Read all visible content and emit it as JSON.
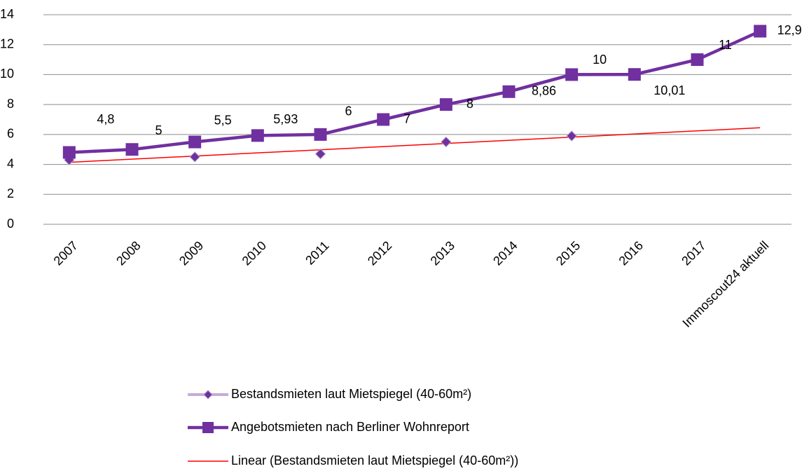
{
  "chart_data": {
    "type": "line",
    "categories": [
      "2007",
      "2008",
      "2009",
      "2010",
      "2011",
      "2012",
      "2013",
      "2014",
      "2015",
      "2016",
      "2017",
      "Immoscout24 aktuell"
    ],
    "series": [
      {
        "name": "Bestandsmieten laut Mietspiegel (40-60m²)",
        "color": "#7030a0",
        "marker": "diamond",
        "values": [
          4.3,
          null,
          4.5,
          null,
          4.7,
          null,
          5.5,
          null,
          5.9,
          null,
          null,
          null
        ]
      },
      {
        "name": "Angebotsmieten nach Berliner Wohnreport",
        "color": "#7030a0",
        "marker": "square",
        "values": [
          4.8,
          5,
          5.5,
          5.93,
          6,
          7,
          8,
          8.86,
          10,
          10.01,
          11,
          12.9
        ],
        "value_labels": [
          "4,8",
          "5",
          "5,5",
          "5,93",
          "6",
          "7",
          "8",
          "8,86",
          "10",
          "10,01",
          "11",
          "12,9"
        ]
      }
    ],
    "trendline": {
      "name": "Linear (Bestandsmieten laut Mietspiegel (40-60m²))",
      "color": "#ff0000"
    },
    "ylim": [
      0,
      14
    ],
    "yticks": [
      0,
      2,
      4,
      6,
      8,
      10,
      12,
      14
    ],
    "grid": true,
    "legend": "bottom"
  }
}
